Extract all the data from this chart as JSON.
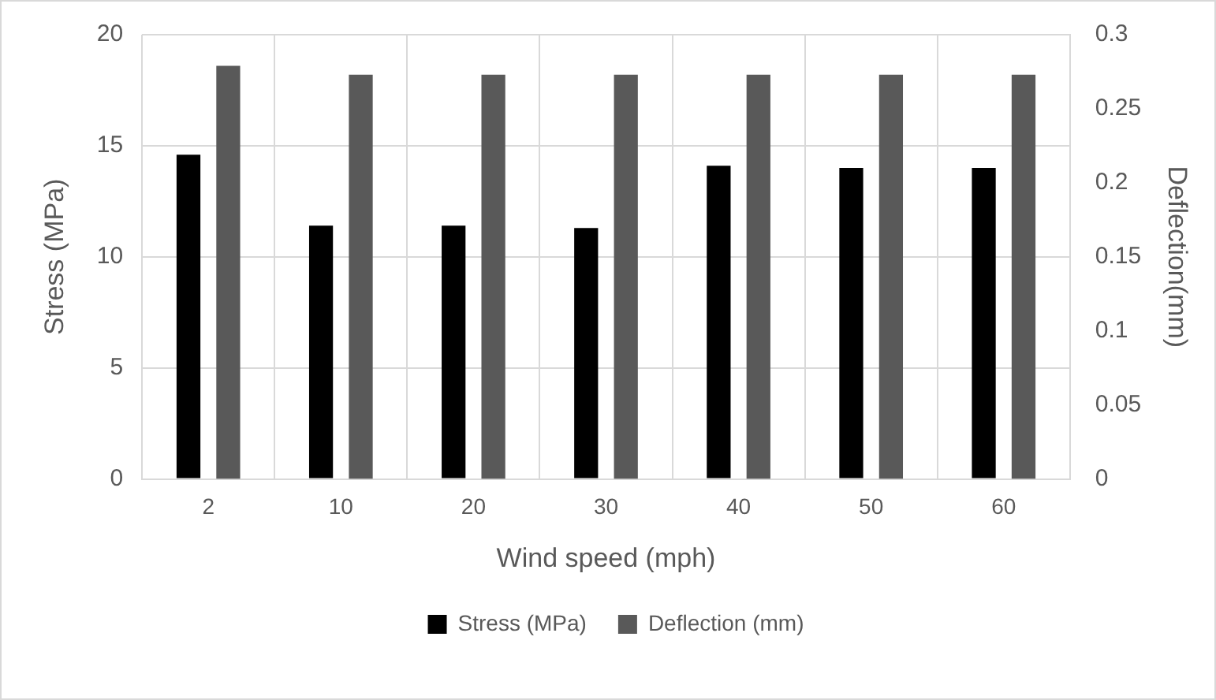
{
  "chart_data": {
    "type": "bar",
    "categories": [
      "2",
      "10",
      "20",
      "30",
      "40",
      "50",
      "60"
    ],
    "series": [
      {
        "name": "Stress (MPa)",
        "color": "#000000",
        "values": [
          14.6,
          11.4,
          11.4,
          11.3,
          14.1,
          14.0,
          14.0
        ]
      },
      {
        "name": "Deflection (mm)",
        "color": "#595959",
        "axis": "y2",
        "values": [
          0.279,
          0.273,
          0.273,
          0.273,
          0.273,
          0.273,
          0.273
        ]
      }
    ],
    "xlabel": "Wind speed (mph)",
    "ylabel": "Stress (MPa)",
    "y2label": "Deflection(mm)",
    "ylim": [
      0,
      20
    ],
    "yticks": [
      0,
      5,
      10,
      15,
      20
    ],
    "y2lim": [
      0,
      0.3
    ],
    "y2ticks": [
      0,
      0.05,
      0.1,
      0.15,
      0.2,
      0.25,
      0.3
    ],
    "grid": true,
    "legend": "bottom"
  }
}
